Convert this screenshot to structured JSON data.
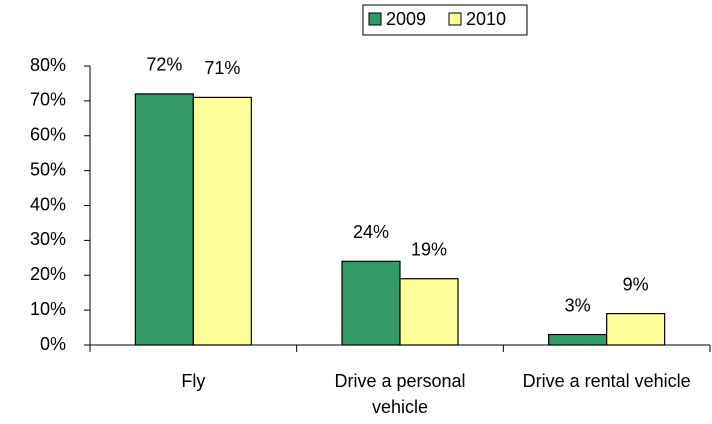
{
  "chart_data": {
    "type": "bar",
    "categories": [
      "Fly",
      "Drive a personal vehicle",
      "Drive a rental vehicle"
    ],
    "series": [
      {
        "name": "2009",
        "color": "#339966",
        "values": [
          72,
          24,
          3
        ],
        "value_labels": [
          "72%",
          "24%",
          "3%"
        ]
      },
      {
        "name": "2010",
        "color": "#ffff99",
        "values": [
          71,
          19,
          9
        ],
        "value_labels": [
          "71%",
          "19%",
          "9%"
        ]
      }
    ],
    "ylim": [
      0,
      80
    ],
    "yticks": [
      {
        "value": 0,
        "label": "0%"
      },
      {
        "value": 10,
        "label": "10%"
      },
      {
        "value": 20,
        "label": "20%"
      },
      {
        "value": 30,
        "label": "30%"
      },
      {
        "value": 40,
        "label": "40%"
      },
      {
        "value": 50,
        "label": "50%"
      },
      {
        "value": 60,
        "label": "60%"
      },
      {
        "value": 70,
        "label": "70%"
      },
      {
        "value": 80,
        "label": "80%"
      }
    ],
    "grid": false,
    "legend": "top"
  }
}
